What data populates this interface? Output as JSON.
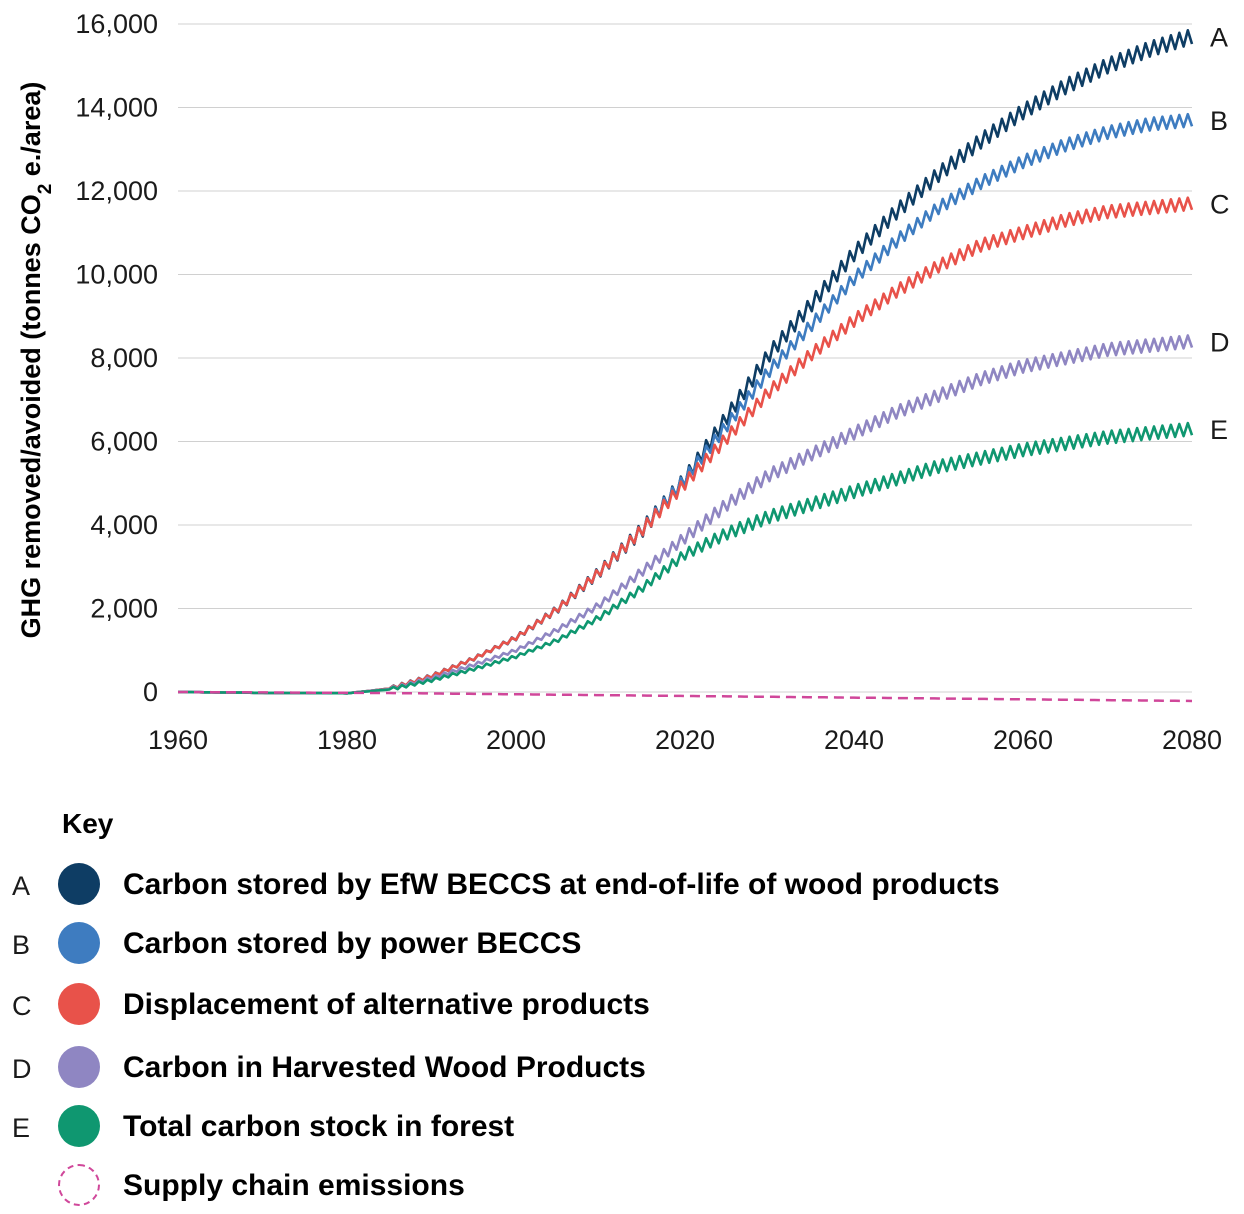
{
  "chart_data": {
    "type": "line",
    "title": "",
    "xlabel": "",
    "ylabel": "GHG removed/avoided (tonnes CO",
    "ylabel_sub": "2",
    "ylabel_suffix": " e./area)",
    "xlim": [
      1960,
      2080
    ],
    "ylim": [
      0,
      16000
    ],
    "x_ticks": [
      "1960",
      "1980",
      "2000",
      "2020",
      "2040",
      "2060",
      "2080"
    ],
    "y_ticks": [
      "0",
      "2,000",
      "4,000",
      "6,000",
      "8,000",
      "10,000",
      "12,000",
      "14,000",
      "16,000"
    ],
    "grid": "horizontal",
    "x": [
      1960,
      1970,
      1980,
      1985,
      1990,
      1995,
      2000,
      2005,
      2010,
      2015,
      2020,
      2025,
      2030,
      2035,
      2040,
      2045,
      2050,
      2055,
      2060,
      2065,
      2070,
      2075,
      2080
    ],
    "series": [
      {
        "label": "A",
        "name": "Carbon stored by EfW BECCS at end-of-life of wood products",
        "color": "#0e3d64",
        "values": [
          0,
          -20,
          -30,
          80,
          380,
          800,
          1300,
          2000,
          2900,
          3900,
          5100,
          6600,
          8100,
          9300,
          10500,
          11500,
          12400,
          13200,
          13900,
          14500,
          15000,
          15400,
          15700
        ]
      },
      {
        "label": "B",
        "name": "Carbon stored by power BECCS",
        "color": "#3e7cc0",
        "values": [
          0,
          -20,
          -30,
          80,
          380,
          800,
          1300,
          2000,
          2900,
          3900,
          5100,
          6400,
          7700,
          8800,
          9900,
          10800,
          11600,
          12200,
          12700,
          13100,
          13400,
          13600,
          13700
        ]
      },
      {
        "label": "C",
        "name": "Displacement of alternative products",
        "color": "#e8524a",
        "values": [
          0,
          -20,
          -30,
          80,
          380,
          800,
          1300,
          2000,
          2900,
          3900,
          5000,
          6100,
          7200,
          8100,
          8900,
          9600,
          10200,
          10700,
          11000,
          11300,
          11500,
          11600,
          11700
        ]
      },
      {
        "label": "D",
        "name": "Carbon in Harvested Wood Products",
        "color": "#8f86c2",
        "values": [
          0,
          -20,
          -30,
          70,
          330,
          650,
          1000,
          1500,
          2100,
          2900,
          3700,
          4500,
          5200,
          5700,
          6200,
          6700,
          7100,
          7500,
          7800,
          8000,
          8200,
          8300,
          8400
        ]
      },
      {
        "label": "E",
        "name": "Total carbon stock in forest",
        "color": "#0f9770",
        "values": [
          0,
          -20,
          -30,
          60,
          280,
          550,
          850,
          1250,
          1800,
          2500,
          3300,
          3800,
          4200,
          4500,
          4800,
          5100,
          5400,
          5600,
          5800,
          5950,
          6100,
          6200,
          6300
        ]
      },
      {
        "label": "",
        "name": "Supply chain emissions",
        "color": "#d0479a",
        "dashed": true,
        "values": [
          0,
          -10,
          -20,
          -25,
          -35,
          -45,
          -55,
          -65,
          -75,
          -85,
          -95,
          -105,
          -115,
          -125,
          -135,
          -145,
          -155,
          -165,
          -175,
          -185,
          -195,
          -205,
          -215
        ]
      }
    ],
    "oscillation_amplitude": [
      180,
      150,
      150,
      150,
      150,
      0
    ]
  },
  "legend": {
    "title": "Key",
    "items": [
      {
        "letter": "A",
        "label": "Carbon stored by EfW BECCS at end-of-life of wood products",
        "color": "#0e3d64"
      },
      {
        "letter": "B",
        "label": "Carbon stored by power BECCS",
        "color": "#3e7cc0"
      },
      {
        "letter": "C",
        "label": "Displacement of alternative products",
        "color": "#e8524a"
      },
      {
        "letter": "D",
        "label": "Carbon in Harvested Wood Products",
        "color": "#8f86c2"
      },
      {
        "letter": "E",
        "label": "Total carbon stock in forest",
        "color": "#0f9770"
      },
      {
        "letter": "",
        "label": "Supply chain emissions",
        "color": "#d0479a",
        "dashed": true
      }
    ]
  }
}
